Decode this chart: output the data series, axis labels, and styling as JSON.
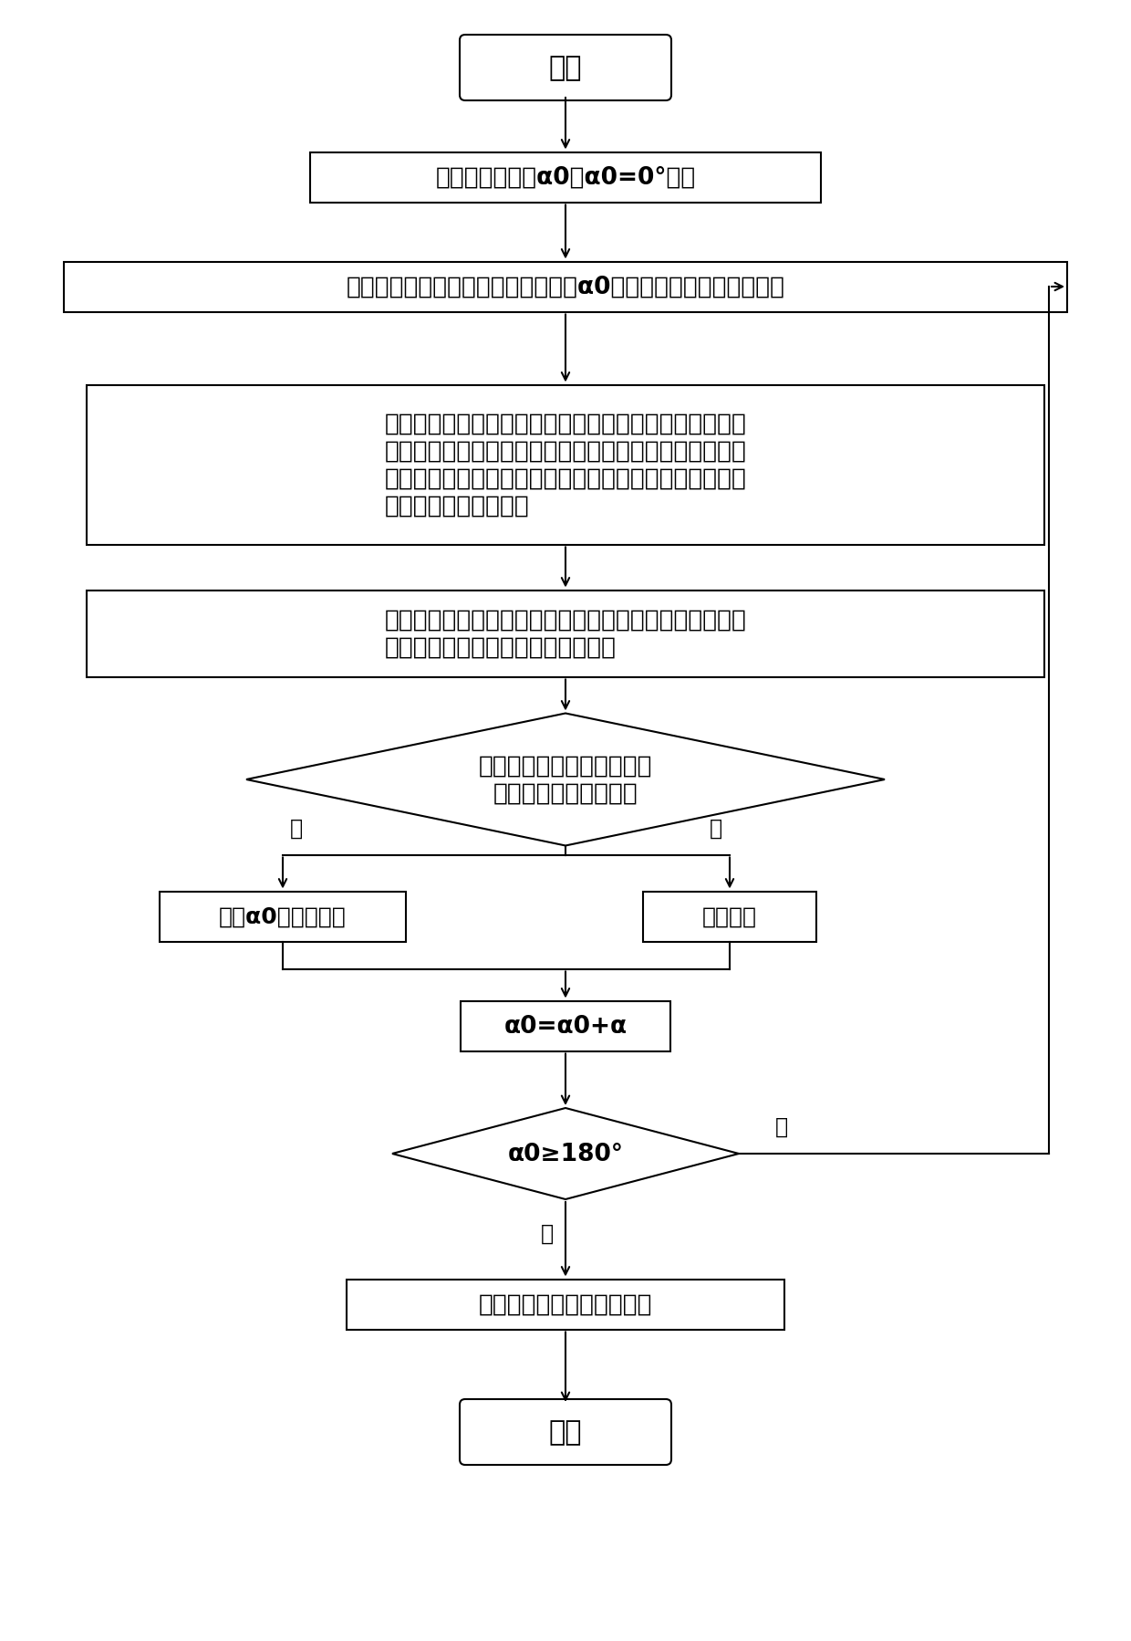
{
  "bg_color": "#ffffff",
  "line_color": "#000000",
  "font_color": "#000000",
  "start_text": "开始",
  "end_text": "结束",
  "step1_text": "选取初始纵剖面α0（α0=0°）；",
  "step2_text": "在支柱绝缘子的主界面（外表面）与α0的相交线上取若干待测点；",
  "step3_line1": "设置太赫兹波在反射模式下以设定入射方向获取每一空间",
  "step3_line2": "点的太赫兹反射时域波形，每一空间点在所述主界面、所",
  "step3_line3": "述第二界面、所述第一界面处依次形成主脉冲、第一回波",
  "step3_line4": "脉冲及第二回波脉冲；",
  "step4_line1": "比较同一入射方向下每一空间点的太赫兹反射时域波形与",
  "step4_line2": "非缺陷区域的太赫兹反射时域波形；",
  "diamond1_line1": "是否出现第三回波脉冲或所",
  "diamond1_line2": "述回波脉冲能量变大？",
  "yes_text": "记录α0及缺陷信息",
  "no_text": "界面正常",
  "step5_text": "α0=α0+α",
  "diamond2_text": "α0≥180°",
  "step6_text": "确定支柱绝缘子的缺陷信息",
  "label_yes": "是",
  "label_no": "否",
  "lw": 1.5
}
